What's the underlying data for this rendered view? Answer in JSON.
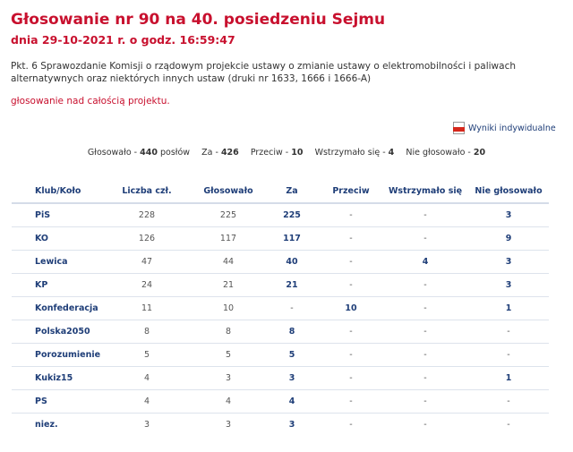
{
  "header": {
    "title": "Głosowanie nr 90 na 40. posiedzeniu Sejmu",
    "datetime": "dnia 29-10-2021 r. o godz. 16:59:47"
  },
  "description": "Pkt. 6 Sprawozdanie Komisji o rządowym projekcie ustawy o zmianie ustawy o elektromobilności i paliwach alternatywnych oraz niektórych innych ustaw (druki nr 1633, 1666 i 1666-A)",
  "scope": "głosowanie nad całością projektu.",
  "individual_results_link": "Wyniki indywidualne",
  "icons": {
    "pdf": "pdf-icon"
  },
  "colors": {
    "accent": "#c8102e",
    "link": "#1f3e78"
  },
  "summary": {
    "voted_label": "Głosowało -",
    "voted": "440",
    "voted_suffix": "posłów",
    "for_label": "Za -",
    "for": "426",
    "against_label": "Przeciw -",
    "against": "10",
    "abstain_label": "Wstrzymało się -",
    "abstain": "4",
    "not_voted_label": "Nie głosowało -",
    "not_voted": "20"
  },
  "table": {
    "headers": [
      "Klub/Koło",
      "Liczba czł.",
      "Głosowało",
      "Za",
      "Przeciw",
      "Wstrzymało się",
      "Nie głosowało"
    ],
    "rows": [
      [
        "PiS",
        "228",
        "225",
        "225",
        "-",
        "-",
        "3"
      ],
      [
        "KO",
        "126",
        "117",
        "117",
        "-",
        "-",
        "9"
      ],
      [
        "Lewica",
        "47",
        "44",
        "40",
        "-",
        "4",
        "3"
      ],
      [
        "KP",
        "24",
        "21",
        "21",
        "-",
        "-",
        "3"
      ],
      [
        "Konfederacja",
        "11",
        "10",
        "-",
        "10",
        "-",
        "1"
      ],
      [
        "Polska2050",
        "8",
        "8",
        "8",
        "-",
        "-",
        "-"
      ],
      [
        "Porozumienie",
        "5",
        "5",
        "5",
        "-",
        "-",
        "-"
      ],
      [
        "Kukiz15",
        "4",
        "3",
        "3",
        "-",
        "-",
        "1"
      ],
      [
        "PS",
        "4",
        "4",
        "4",
        "-",
        "-",
        "-"
      ],
      [
        "niez.",
        "3",
        "3",
        "3",
        "-",
        "-",
        "-"
      ]
    ]
  }
}
